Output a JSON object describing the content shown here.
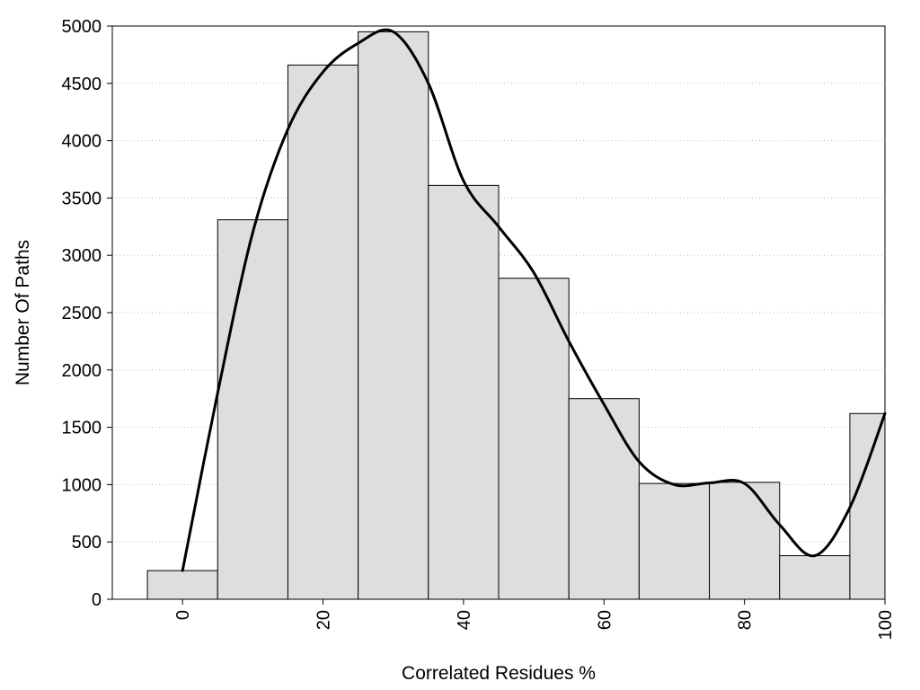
{
  "chart_data": {
    "type": "bar",
    "title": "",
    "xlabel": "Correlated Residues %",
    "ylabel": "Number Of Paths",
    "bins": [
      {
        "center": 0,
        "value": 250
      },
      {
        "center": 10,
        "value": 3310
      },
      {
        "center": 20,
        "value": 4660
      },
      {
        "center": 30,
        "value": 4950
      },
      {
        "center": 40,
        "value": 3610
      },
      {
        "center": 50,
        "value": 2800
      },
      {
        "center": 60,
        "value": 1750
      },
      {
        "center": 70,
        "value": 1010
      },
      {
        "center": 80,
        "value": 1020
      },
      {
        "center": 90,
        "value": 380
      },
      {
        "center": 100,
        "value": 1620
      }
    ],
    "bin_width": 10,
    "curve": [
      [
        0,
        250
      ],
      [
        5,
        1800
      ],
      [
        10,
        3200
      ],
      [
        15,
        4100
      ],
      [
        20,
        4600
      ],
      [
        25,
        4850
      ],
      [
        30,
        4950
      ],
      [
        35,
        4500
      ],
      [
        40,
        3650
      ],
      [
        45,
        3250
      ],
      [
        50,
        2850
      ],
      [
        55,
        2250
      ],
      [
        60,
        1700
      ],
      [
        65,
        1200
      ],
      [
        70,
        1000
      ],
      [
        75,
        1015
      ],
      [
        80,
        1010
      ],
      [
        85,
        650
      ],
      [
        90,
        380
      ],
      [
        95,
        800
      ],
      [
        100,
        1620
      ]
    ],
    "xlim": [
      -10,
      100
    ],
    "ylim": [
      0,
      5000
    ],
    "x_ticks": [
      "0",
      "20",
      "40",
      "60",
      "80",
      "100"
    ],
    "x_tick_values": [
      0,
      20,
      40,
      60,
      80,
      100
    ],
    "y_ticks": [
      "0",
      "500",
      "1000",
      "1500",
      "2000",
      "2500",
      "3000",
      "3500",
      "4000",
      "4500",
      "5000"
    ],
    "y_tick_values": [
      0,
      500,
      1000,
      1500,
      2000,
      2500,
      3000,
      3500,
      4000,
      4500,
      5000
    ],
    "grid": "horizontal-dotted",
    "colors": {
      "bar_fill": "#dedede",
      "bar_stroke": "#000000",
      "curve": "#000000",
      "grid": "#bbbbbb"
    }
  }
}
